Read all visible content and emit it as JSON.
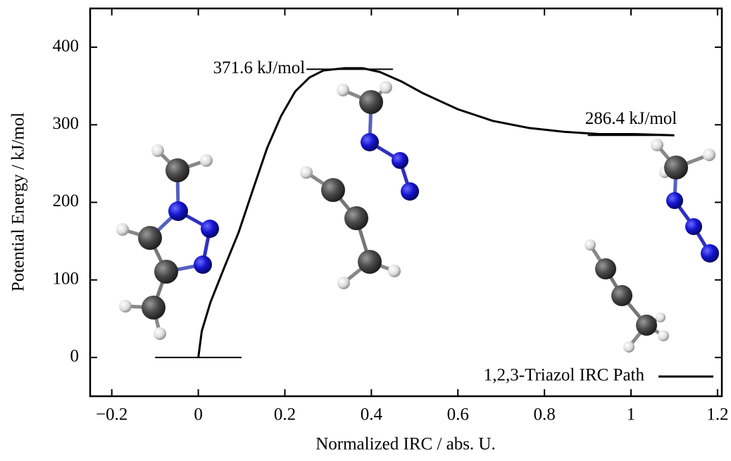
{
  "chart_data": {
    "type": "line",
    "xlabel": "Normalized IRC / abs. U.",
    "ylabel": "Potential Energy / kJ/mol",
    "xlim": [
      -0.25,
      1.21
    ],
    "ylim": [
      -50,
      450
    ],
    "xticks": [
      {
        "value": -0.2,
        "label": "−0.2"
      },
      0,
      0.2,
      0.4,
      0.6,
      0.8,
      1,
      1.2
    ],
    "yticks": [
      0,
      100,
      200,
      300,
      400
    ],
    "legend": "lower right",
    "series": [
      {
        "name": "1,2,3-Triazol IRC Path",
        "color": "#000000",
        "x": [
          0,
          0.008,
          0.028,
          0.06,
          0.093,
          0.126,
          0.159,
          0.191,
          0.224,
          0.257,
          0.289,
          0.338,
          0.38,
          0.42,
          0.469,
          0.518,
          0.6,
          0.681,
          0.763,
          0.845,
          0.927,
          1.009,
          1.1
        ],
        "values": [
          0,
          34,
          71,
          116,
          161,
          216,
          270,
          311,
          343,
          361,
          370,
          373,
          373,
          368,
          356,
          341,
          320,
          305,
          296,
          291,
          288,
          288,
          286.4
        ]
      }
    ],
    "levels": [
      {
        "value": 0,
        "x": [
          -0.1,
          0.1
        ]
      },
      {
        "value": 371.6,
        "label": "371.6 kJ/mol",
        "x": [
          0.25,
          0.45
        ]
      },
      {
        "value": 286.4,
        "label": "286.4 kJ/mol",
        "x": [
          0.9,
          1.1
        ]
      }
    ]
  }
}
